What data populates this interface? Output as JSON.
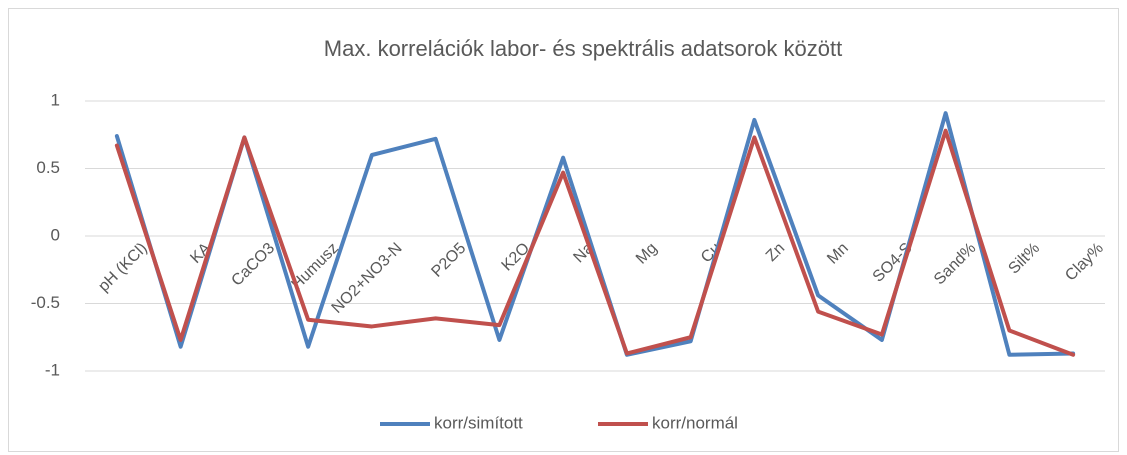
{
  "chart_data": {
    "type": "line",
    "title": "Max. korrelációk labor- és spektrális adatsorok között",
    "categories": [
      "pH (KCl)",
      "KA",
      "CaCO3",
      "Humusz",
      "NO2+NO3-N",
      "P2O5",
      "K2O",
      "Na",
      "Mg",
      "Cu",
      "Zn",
      "Mn",
      "SO4-S",
      "Sand%",
      "Silt%",
      "Clay%"
    ],
    "series": [
      {
        "name": "korr/simított",
        "color": "#4f81bd",
        "values": [
          0.74,
          -0.82,
          0.73,
          -0.82,
          0.6,
          0.72,
          -0.77,
          0.58,
          -0.88,
          -0.78,
          0.86,
          -0.44,
          -0.77,
          0.91,
          -0.88,
          -0.87
        ]
      },
      {
        "name": "korr/normál",
        "color": "#c0504d",
        "values": [
          0.67,
          -0.77,
          0.73,
          -0.62,
          -0.67,
          -0.61,
          -0.66,
          0.47,
          -0.87,
          -0.75,
          0.73,
          -0.56,
          -0.73,
          0.78,
          -0.7,
          -0.88
        ]
      }
    ],
    "ylim": [
      -1,
      1
    ],
    "yticks": [
      1,
      0.5,
      0,
      -0.5,
      -1
    ],
    "grid": true,
    "legend": "bottom"
  }
}
